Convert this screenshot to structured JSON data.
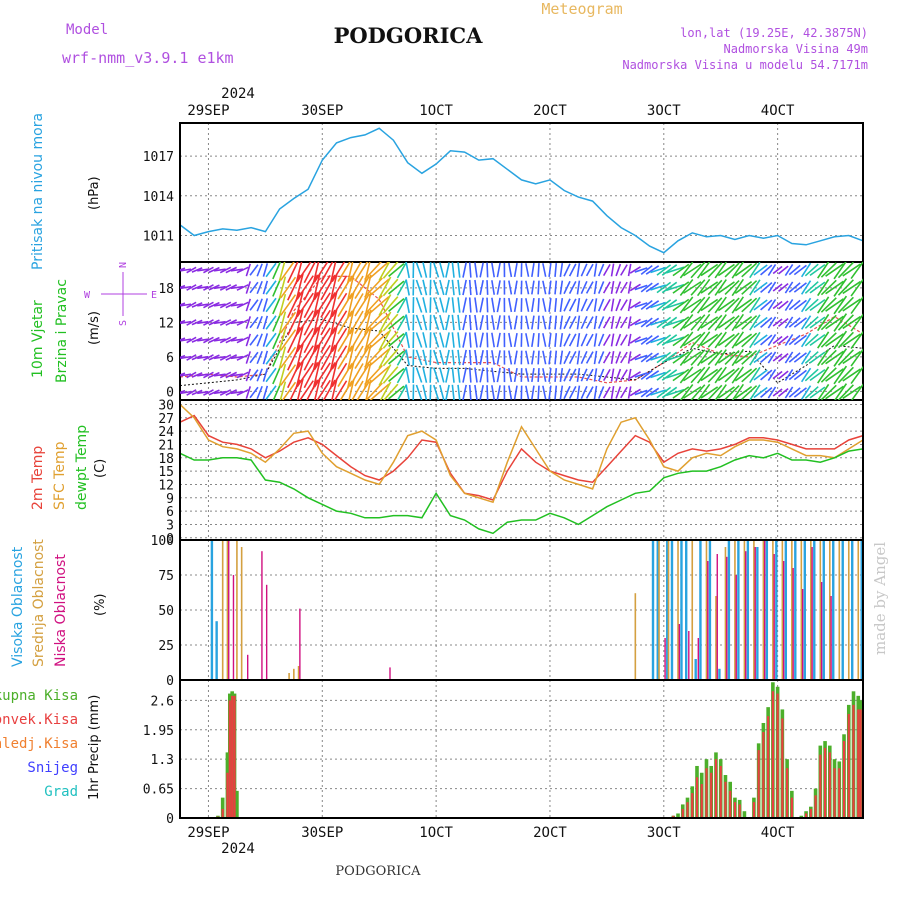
{
  "header": {
    "model_label": "Model",
    "model_name": "wrf-nmm_v3.9.1  e1km",
    "title": "PODGORICA",
    "subtitle": "Meteogram",
    "coords": "lon,lat (19.25E, 42.3875N)",
    "elevation": "Nadmorska Visina 49m",
    "model_elevation": "Nadmorska Visina u modelu 54.7171m",
    "footer": "PODGORICA",
    "watermark": "made by Angel"
  },
  "time_axis": {
    "year": "2024",
    "ticks": [
      "29SEP",
      "30SEP",
      "1OCT",
      "2OCT",
      "3OCT",
      "4OCT"
    ],
    "tick_hours": [
      6,
      30,
      54,
      78,
      102,
      126
    ],
    "range_hours": [
      0,
      144
    ]
  },
  "colors": {
    "pressure": "#29a3e0",
    "wind_label": "#22c022",
    "dir_label": "#b040e0",
    "temp2m": "#e8433a",
    "sfc": "#e0a030",
    "dewpt": "#22c022",
    "high_cloud": "#29a3e0",
    "mid_cloud": "#d4a040",
    "low_cloud": "#d01080",
    "total_precip": "#4caf2a",
    "conv_precip": "#e84040",
    "freezing": "#f08030",
    "snow": "#4040ff",
    "hail": "#20c0c0"
  },
  "chart_data": [
    {
      "type": "line",
      "title": "Pritisak na nivou mora",
      "ylabel": "(hPa)",
      "yticks": [
        1011,
        1014,
        1017
      ],
      "ylim": [
        1009,
        1019.5
      ],
      "grid": true,
      "series": [
        {
          "name": "Pritisak na nivou mora",
          "x": [
            0,
            3,
            6,
            9,
            12,
            15,
            18,
            21,
            24,
            27,
            30,
            33,
            36,
            39,
            42,
            45,
            48,
            51,
            54,
            57,
            60,
            63,
            66,
            69,
            72,
            75,
            78,
            81,
            84,
            87,
            90,
            93,
            96,
            99,
            102,
            105,
            108,
            111,
            114,
            117,
            120,
            123,
            126,
            129,
            132,
            135,
            138,
            141,
            144
          ],
          "values": [
            1011.8,
            1011.0,
            1011.3,
            1011.5,
            1011.4,
            1011.6,
            1011.3,
            1013.0,
            1013.8,
            1014.5,
            1016.7,
            1018.0,
            1018.4,
            1018.6,
            1019.1,
            1018.2,
            1016.5,
            1015.7,
            1016.4,
            1017.4,
            1017.3,
            1016.7,
            1016.8,
            1016.0,
            1015.2,
            1014.9,
            1015.2,
            1014.4,
            1013.9,
            1013.6,
            1012.5,
            1011.6,
            1011.0,
            1010.2,
            1009.7,
            1010.6,
            1011.2,
            1010.9,
            1011.0,
            1010.7,
            1011.0,
            1010.8,
            1011.0,
            1010.4,
            1010.3,
            1010.6,
            1010.9,
            1011.0,
            1010.6
          ]
        }
      ]
    },
    {
      "type": "line",
      "title": "10m Vjetar Brzina i Pravac",
      "ylabel": "(m/s)",
      "direction_key": {
        "north": "N",
        "south": "S",
        "east": "E",
        "west": "W"
      },
      "yticks": [
        0,
        6,
        12,
        18
      ],
      "ylim": [
        -1.5,
        22.5
      ],
      "grid": true,
      "series": [
        {
          "name": "speed",
          "x": [
            0,
            6,
            12,
            18,
            24,
            30,
            36,
            42,
            48,
            54,
            60,
            66,
            72,
            78,
            84,
            90,
            96,
            102,
            108,
            114,
            120,
            126,
            132,
            138,
            144
          ],
          "values": [
            1.0,
            1.5,
            2.0,
            3.0,
            12.0,
            12.5,
            11.0,
            10.5,
            4.5,
            4.0,
            4.0,
            3.5,
            3.0,
            3.0,
            3.0,
            2.5,
            2.0,
            5.0,
            7.5,
            6.5,
            7.0,
            1.5,
            4.5,
            8.0,
            7.5
          ]
        },
        {
          "name": "gust",
          "x": [
            0,
            6,
            12,
            18,
            24,
            30,
            36,
            42,
            48,
            54,
            60,
            66,
            72,
            78,
            84,
            90,
            96,
            102,
            108,
            114,
            120,
            126,
            132,
            138,
            144
          ],
          "values": [
            2.5,
            3.0,
            2.5,
            3.0,
            14.0,
            20.0,
            20.0,
            16.0,
            6.0,
            5.0,
            5.0,
            5.0,
            2.5,
            2.5,
            2.5,
            1.5,
            2.0,
            5.0,
            8.5,
            6.5,
            6.0,
            8.0,
            10.0,
            13.0,
            10.0
          ]
        }
      ]
    },
    {
      "type": "line",
      "title": "2m Temp / SFC Temp / dewpt Temp",
      "ylabel": "(C)",
      "yticks": [
        0,
        3,
        6,
        9,
        12,
        15,
        18,
        21,
        24,
        27,
        30
      ],
      "ylim": [
        -0.5,
        31
      ],
      "grid": true,
      "series": [
        {
          "name": "2m Temp",
          "x": [
            0,
            3,
            6,
            9,
            12,
            15,
            18,
            21,
            24,
            27,
            30,
            33,
            36,
            39,
            42,
            45,
            48,
            51,
            54,
            57,
            60,
            63,
            66,
            69,
            72,
            75,
            78,
            81,
            84,
            87,
            90,
            93,
            96,
            99,
            102,
            105,
            108,
            111,
            114,
            117,
            120,
            123,
            126,
            129,
            132,
            135,
            138,
            141,
            144
          ],
          "values": [
            26,
            27.5,
            23,
            21.5,
            21,
            20,
            18,
            19.5,
            21.5,
            22.5,
            21,
            18.5,
            16,
            14,
            13,
            15,
            18,
            22,
            21.5,
            14.5,
            10,
            9.5,
            8.5,
            15,
            20,
            17,
            15,
            14,
            13,
            12.5,
            16,
            19.5,
            23,
            21.5,
            17,
            19,
            20,
            19.5,
            20,
            21,
            22.5,
            22.5,
            22,
            21,
            20,
            20,
            20,
            22,
            23
          ]
        },
        {
          "name": "SFC Temp",
          "x": [
            0,
            3,
            6,
            9,
            12,
            15,
            18,
            21,
            24,
            27,
            30,
            33,
            36,
            39,
            42,
            45,
            48,
            51,
            54,
            57,
            60,
            63,
            66,
            69,
            72,
            75,
            78,
            81,
            84,
            87,
            90,
            93,
            96,
            99,
            102,
            105,
            108,
            111,
            114,
            117,
            120,
            123,
            126,
            129,
            132,
            135,
            138,
            141,
            144
          ],
          "values": [
            30,
            27,
            22,
            20.5,
            20,
            19,
            17,
            20,
            23.5,
            24,
            19,
            16,
            14.5,
            13,
            12,
            17,
            23,
            24,
            22,
            14,
            10,
            9,
            8,
            17,
            25,
            20,
            15,
            13,
            12,
            11,
            20,
            26,
            27,
            22,
            16,
            15,
            18,
            19,
            18.5,
            20.5,
            22,
            22,
            21.5,
            20,
            18.5,
            18.5,
            18,
            20,
            22
          ]
        },
        {
          "name": "dewpt Temp",
          "x": [
            0,
            3,
            6,
            9,
            12,
            15,
            18,
            21,
            24,
            27,
            30,
            33,
            36,
            39,
            42,
            45,
            48,
            51,
            54,
            57,
            60,
            63,
            66,
            69,
            72,
            75,
            78,
            81,
            84,
            87,
            90,
            93,
            96,
            99,
            102,
            105,
            108,
            111,
            114,
            117,
            120,
            123,
            126,
            129,
            132,
            135,
            138,
            141,
            144
          ],
          "values": [
            19,
            17.5,
            17.5,
            18,
            18,
            17.5,
            13,
            12.5,
            11,
            9,
            7.5,
            6,
            5.5,
            4.5,
            4.5,
            5,
            5,
            4.5,
            10,
            5,
            4,
            2,
            1,
            3.5,
            4,
            4,
            5.5,
            4.5,
            3,
            5,
            7,
            8.5,
            10,
            10.5,
            13.5,
            14.5,
            15,
            15,
            16,
            17.5,
            18.5,
            18,
            19,
            17.5,
            17.5,
            17,
            18,
            19.5,
            20
          ]
        }
      ]
    },
    {
      "type": "bar",
      "title": "Visoka / Srednja / Niska Oblacnost",
      "ylabel": "(%)",
      "yticks": [
        0,
        25,
        50,
        75,
        100
      ],
      "ylim": [
        0,
        100
      ],
      "grid": true,
      "series": [
        {
          "name": "Visoka Oblacnost",
          "x": [
            7,
            8,
            100,
            101,
            103,
            104,
            106,
            107,
            109,
            110,
            112,
            114,
            116,
            118,
            120,
            122,
            124,
            126,
            128,
            130,
            132,
            134,
            136,
            138,
            140,
            142,
            144
          ],
          "values": [
            100,
            42,
            100,
            100,
            100,
            100,
            100,
            100,
            15,
            100,
            100,
            8,
            100,
            100,
            100,
            95,
            100,
            100,
            100,
            100,
            100,
            100,
            100,
            100,
            100,
            100,
            100
          ]
        },
        {
          "name": "Srednja Oblacnost",
          "x": [
            9,
            10,
            12,
            13,
            23,
            24,
            25,
            96,
            101,
            103,
            105,
            108,
            111,
            113,
            115,
            117,
            119,
            121,
            123,
            125,
            127,
            129,
            131,
            133,
            135,
            137,
            139,
            141,
            143
          ],
          "values": [
            100,
            100,
            100,
            95,
            5,
            8,
            10,
            62,
            100,
            100,
            100,
            100,
            100,
            60,
            95,
            100,
            100,
            100,
            100,
            100,
            100,
            100,
            100,
            100,
            100,
            100,
            100,
            100,
            100
          ]
        },
        {
          "name": "Niska Oblacnost",
          "x": [
            10,
            11,
            14,
            17,
            18,
            25,
            44,
            102,
            105,
            107,
            109,
            111,
            113,
            115,
            117,
            119,
            121,
            123,
            125,
            127,
            129,
            131,
            133,
            135,
            137
          ],
          "values": [
            100,
            75,
            18,
            92,
            68,
            51,
            9,
            30,
            40,
            35,
            30,
            85,
            90,
            88,
            75,
            92,
            95,
            100,
            90,
            85,
            80,
            65,
            95,
            70,
            60
          ]
        }
      ]
    },
    {
      "type": "bar",
      "title": "Ukupna Kisa / Konvek.Kisa / Zaledj.Kisa / Snijeg / Grad",
      "ylabel": "1hr Precip (mm)",
      "yticks": [
        0,
        0.65,
        1.3,
        1.95,
        2.6
      ],
      "ylim": [
        0,
        3.05
      ],
      "grid": true,
      "series": [
        {
          "name": "Ukupna Kisa",
          "x": [
            8,
            9,
            10,
            10.5,
            11,
            11.5,
            12,
            104,
            105,
            106,
            107,
            108,
            109,
            110,
            111,
            112,
            113,
            114,
            115,
            116,
            117,
            118,
            119,
            121,
            122,
            123,
            124,
            125,
            126,
            127,
            128,
            129,
            131,
            132,
            133,
            134,
            135,
            136,
            137,
            138,
            139,
            140,
            141,
            142,
            143,
            143.5
          ],
          "values": [
            0.05,
            0.45,
            1.45,
            2.75,
            2.8,
            2.75,
            0.6,
            0.05,
            0.1,
            0.3,
            0.45,
            0.7,
            1.15,
            1.0,
            1.3,
            1.15,
            1.45,
            1.3,
            0.95,
            0.8,
            0.45,
            0.4,
            0.15,
            0.45,
            1.65,
            2.1,
            2.45,
            3.0,
            2.9,
            2.4,
            1.3,
            0.6,
            0.05,
            0.15,
            0.25,
            0.65,
            1.6,
            1.7,
            1.6,
            1.3,
            1.25,
            1.85,
            2.5,
            2.8,
            2.7,
            2.6
          ]
        },
        {
          "name": "Konvek.Kisa",
          "x": [
            8,
            9,
            10,
            10.5,
            11,
            11.5,
            104,
            106,
            107,
            108,
            109,
            110,
            111,
            112,
            113,
            114,
            115,
            116,
            117,
            118,
            121,
            122,
            123,
            124,
            125,
            126,
            127,
            128,
            129,
            132,
            133,
            134,
            135,
            136,
            137,
            138,
            139,
            140,
            141,
            142,
            143,
            143.5
          ],
          "values": [
            0.03,
            0.2,
            1.0,
            2.6,
            2.7,
            2.7,
            0.05,
            0.2,
            0.35,
            0.55,
            0.9,
            0.75,
            1.1,
            1.0,
            1.3,
            1.15,
            0.8,
            0.6,
            0.35,
            0.3,
            0.35,
            1.5,
            1.9,
            2.25,
            2.8,
            2.75,
            2.2,
            1.1,
            0.45,
            0.1,
            0.2,
            0.5,
            1.4,
            1.55,
            1.45,
            1.1,
            1.1,
            1.7,
            2.3,
            2.5,
            2.4,
            2.4
          ]
        }
      ]
    }
  ],
  "panel_labels": {
    "pressure": {
      "main": "Pritisak na nivou mora",
      "unit": "(hPa)"
    },
    "wind": {
      "line1": "10m Vjetar",
      "line2": "Brzina i Pravac",
      "unit": "(m/s)"
    },
    "temp": {
      "l1": "2m Temp",
      "l2": "SFC Temp",
      "l3": "dewpt Temp",
      "unit": "(C)"
    },
    "cloud": {
      "l1": "Visoka Oblacnost",
      "l2": "Srednja Oblacnost",
      "l3": "Niska Oblacnost",
      "unit": "(%)"
    },
    "precip": {
      "l1": "Ukupna Kisa",
      "l2": "Konvek.Kisa",
      "l3": "Zaledj.Kisa",
      "l4": "Snijeg",
      "l5": "Grad",
      "unit": "1hr Precip (mm)"
    }
  }
}
